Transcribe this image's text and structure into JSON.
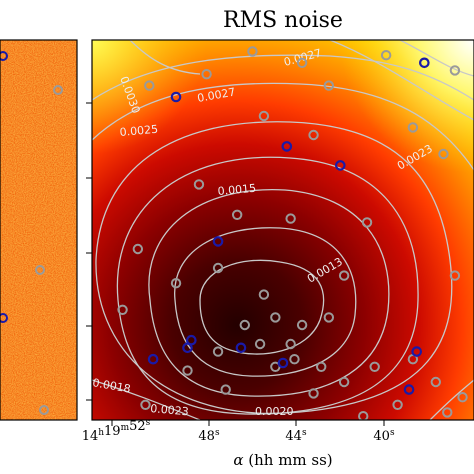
{
  "chart_data": {
    "type": "heatmap",
    "title": "RMS noise",
    "xlabel_symbol": "α",
    "xlabel_units": "(hh mm ss)",
    "x_ticks": [
      {
        "h": "14",
        "m": "19",
        "s": "52"
      },
      {
        "s": "48"
      },
      {
        "s": "44"
      },
      {
        "s": "40"
      }
    ],
    "colormap": "hot",
    "grid": false,
    "contour_labels": [
      {
        "text": "0.0030",
        "rot": 70
      },
      {
        "text": "0.0027",
        "rot": -10
      },
      {
        "text": "0.0027",
        "rot": -15
      },
      {
        "text": "0.0025",
        "rot": -5
      },
      {
        "text": "0.0023",
        "rot": -30
      },
      {
        "text": "0.0015",
        "rot": -5
      },
      {
        "text": "0.0013",
        "rot": -30
      },
      {
        "text": "0.0018",
        "rot": 10
      },
      {
        "text": "0.0023",
        "rot": 5
      },
      {
        "text": "0.0020",
        "rot": 0
      }
    ],
    "grey_sources": [
      [
        0.42,
        0.03
      ],
      [
        0.55,
        0.06
      ],
      [
        0.77,
        0.04
      ],
      [
        0.3,
        0.09
      ],
      [
        0.95,
        0.08
      ],
      [
        0.15,
        0.12
      ],
      [
        0.62,
        0.12
      ],
      [
        0.45,
        0.2
      ],
      [
        0.58,
        0.25
      ],
      [
        0.84,
        0.23
      ],
      [
        0.92,
        0.3
      ],
      [
        0.28,
        0.38
      ],
      [
        0.38,
        0.46
      ],
      [
        0.52,
        0.47
      ],
      [
        0.72,
        0.48
      ],
      [
        0.12,
        0.55
      ],
      [
        0.33,
        0.6
      ],
      [
        0.66,
        0.62
      ],
      [
        0.22,
        0.64
      ],
      [
        0.45,
        0.67
      ],
      [
        0.08,
        0.71
      ],
      [
        0.95,
        0.62
      ],
      [
        0.4,
        0.75
      ],
      [
        0.48,
        0.73
      ],
      [
        0.55,
        0.75
      ],
      [
        0.62,
        0.73
      ],
      [
        0.44,
        0.8
      ],
      [
        0.52,
        0.8
      ],
      [
        0.33,
        0.82
      ],
      [
        0.48,
        0.86
      ],
      [
        0.6,
        0.86
      ],
      [
        0.25,
        0.87
      ],
      [
        0.74,
        0.86
      ],
      [
        0.84,
        0.84
      ],
      [
        0.66,
        0.9
      ],
      [
        0.35,
        0.92
      ],
      [
        0.58,
        0.93
      ],
      [
        0.9,
        0.9
      ],
      [
        0.97,
        0.94
      ],
      [
        0.8,
        0.96
      ],
      [
        0.14,
        0.96
      ],
      [
        0.71,
        0.99
      ],
      [
        0.93,
        0.98
      ],
      [
        0.53,
        0.84
      ]
    ],
    "blue_sources": [
      [
        0.87,
        0.06
      ],
      [
        0.22,
        0.15
      ],
      [
        0.51,
        0.28
      ],
      [
        0.65,
        0.33
      ],
      [
        0.33,
        0.53
      ],
      [
        0.26,
        0.79
      ],
      [
        0.25,
        0.81
      ],
      [
        0.39,
        0.81
      ],
      [
        0.16,
        0.84
      ],
      [
        0.5,
        0.85
      ],
      [
        0.85,
        0.82
      ],
      [
        0.83,
        0.92
      ]
    ]
  }
}
